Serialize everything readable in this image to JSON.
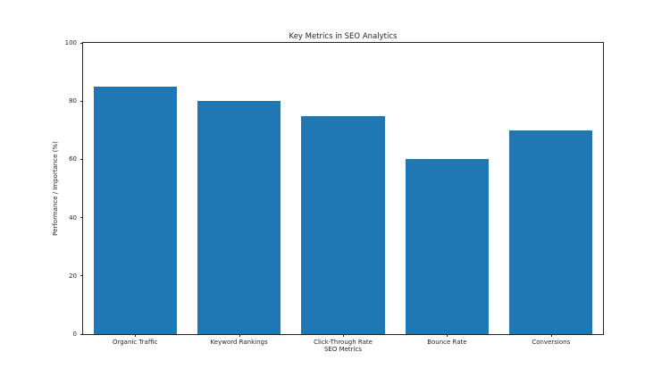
{
  "colors": {
    "bar": "#1f77b4",
    "text": "#262626",
    "background": "#ffffff"
  },
  "chart_data": {
    "type": "bar",
    "title": "Key Metrics in SEO Analytics",
    "xlabel": "SEO Metrics",
    "ylabel": "Performance / Importance (%)",
    "categories": [
      "Organic Traffic",
      "Keyword Rankings",
      "Click-Through Rate",
      "Bounce Rate",
      "Conversions"
    ],
    "values": [
      85,
      80,
      75,
      60,
      70
    ],
    "ylim": [
      0,
      100
    ],
    "yticks": [
      0,
      20,
      40,
      60,
      80,
      100
    ],
    "grid": "off",
    "legend": "none",
    "bar_width_fraction": 0.8
  }
}
